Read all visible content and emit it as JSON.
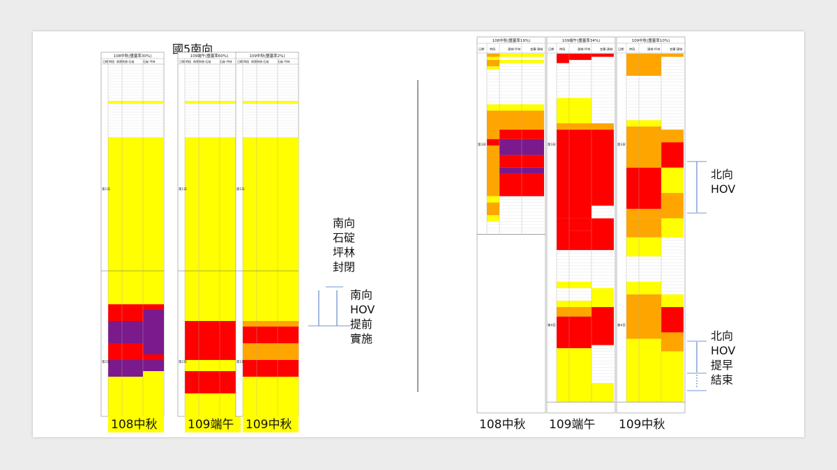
{
  "title": "國5南向",
  "left_panel": {
    "headers": [
      "108中秋(壅塞率30%)",
      "109端午(壅塞率60%)",
      "109中秋(壅塞率2%)"
    ],
    "subheaders": [
      [
        "日期",
        "時段",
        "南港系統-石碇",
        "石碇-坪林"
      ],
      [
        "日期",
        "時段",
        "南港系統-石碇",
        "石碇-坪林"
      ],
      [
        "日期",
        "時段",
        "南港系統-石碇",
        "石碇-坪林"
      ]
    ],
    "day_labels": [
      [
        "第1日",
        "第2日"
      ],
      [
        "第1日",
        "第2日"
      ],
      [
        "第1日",
        "第2日"
      ]
    ],
    "captions": [
      "108中秋",
      "109端午",
      "109中秋"
    ],
    "annotations": [
      "南向\n石碇\n坪林\n封閉",
      "南向\nHOV\n提前\n實施"
    ]
  },
  "right_panel": {
    "headers": [
      "108中秋(壅塞率19%)",
      "109端午(壅塞率34%)",
      "109中秋(壅塞率10%)"
    ],
    "subheaders": [
      [
        "日期",
        "時段",
        "頭城-坪林",
        "宜蘭-頭城"
      ],
      [
        "日期",
        "時段",
        "頭城-坪林",
        "宜蘭-頭城"
      ],
      [
        "日期",
        "時段",
        "頭城-坪林",
        "宜蘭-頭城"
      ]
    ],
    "day_labels": [
      [
        "第3日"
      ],
      [
        "第3日",
        "第4日"
      ],
      [
        "第3日",
        "第4日"
      ]
    ],
    "captions": [
      "108中秋",
      "109端午",
      "109中秋"
    ],
    "annotations": [
      "北向\nHOV",
      "北向\nHOV\n提早\n結束"
    ]
  },
  "chart_data": {
    "type": "heatmap",
    "legend": {
      "0": "white",
      "1": "yellow",
      "2": "orange",
      "3": "red",
      "4": "purple"
    },
    "colors": {
      "0": "#ffffff",
      "1": "#ffff00",
      "2": "#ffa500",
      "3": "#ff0000",
      "4": "#7a1a8c"
    },
    "grids": [
      {
        "name": "108中秋",
        "cols": [
          [
            [
              1,
              13,
              0
            ],
            [
              13,
              14,
              1
            ],
            [
              14,
              26,
              0
            ],
            [
              26,
              86,
              1
            ],
            [
              86,
              92,
              3
            ],
            [
              92,
              100,
              4
            ],
            [
              100,
              106,
              3
            ],
            [
              106,
              112,
              4
            ],
            [
              112,
              132,
              1
            ]
          ],
          [
            [
              1,
              13,
              0
            ],
            [
              13,
              14,
              1
            ],
            [
              14,
              26,
              0
            ],
            [
              26,
              86,
              1
            ],
            [
              86,
              92,
              3
            ],
            [
              92,
              100,
              4
            ],
            [
              100,
              106,
              3
            ],
            [
              106,
              112,
              4
            ],
            [
              112,
              132,
              1
            ]
          ],
          [
            [
              1,
              13,
              0
            ],
            [
              13,
              14,
              1
            ],
            [
              14,
              26,
              0
            ],
            [
              26,
              86,
              1
            ],
            [
              86,
              88,
              3
            ],
            [
              88,
              104,
              4
            ],
            [
              104,
              106,
              3
            ],
            [
              106,
              110,
              4
            ],
            [
              110,
              132,
              1
            ]
          ]
        ]
      },
      {
        "name": "109端午",
        "cols": [
          [
            [
              1,
              13,
              0
            ],
            [
              13,
              14,
              1
            ],
            [
              14,
              26,
              0
            ],
            [
              26,
              92,
              1
            ],
            [
              92,
              106,
              3
            ],
            [
              106,
              110,
              1
            ],
            [
              110,
              118,
              3
            ],
            [
              118,
              132,
              1
            ]
          ],
          [
            [
              1,
              13,
              0
            ],
            [
              13,
              14,
              1
            ],
            [
              14,
              26,
              0
            ],
            [
              26,
              92,
              1
            ],
            [
              92,
              106,
              3
            ],
            [
              106,
              110,
              1
            ],
            [
              110,
              118,
              3
            ],
            [
              118,
              132,
              1
            ]
          ],
          [
            [
              1,
              13,
              0
            ],
            [
              13,
              14,
              1
            ],
            [
              14,
              26,
              0
            ],
            [
              26,
              92,
              1
            ],
            [
              92,
              106,
              3
            ],
            [
              106,
              110,
              1
            ],
            [
              110,
              118,
              3
            ],
            [
              118,
              132,
              1
            ]
          ]
        ]
      },
      {
        "name": "109中秋",
        "cols": [
          [
            [
              1,
              13,
              0
            ],
            [
              13,
              14,
              1
            ],
            [
              14,
              26,
              0
            ],
            [
              26,
              92,
              1
            ],
            [
              92,
              94,
              2
            ],
            [
              94,
              100,
              3
            ],
            [
              100,
              106,
              2
            ],
            [
              106,
              112,
              3
            ],
            [
              112,
              132,
              1
            ]
          ],
          [
            [
              1,
              13,
              0
            ],
            [
              13,
              14,
              1
            ],
            [
              14,
              26,
              0
            ],
            [
              26,
              92,
              1
            ],
            [
              92,
              94,
              2
            ],
            [
              94,
              100,
              3
            ],
            [
              100,
              106,
              2
            ],
            [
              106,
              112,
              3
            ],
            [
              112,
              132,
              1
            ]
          ],
          [
            [
              1,
              13,
              0
            ],
            [
              13,
              14,
              1
            ],
            [
              14,
              26,
              0
            ],
            [
              26,
              92,
              1
            ],
            [
              92,
              94,
              2
            ],
            [
              94,
              100,
              3
            ],
            [
              100,
              106,
              2
            ],
            [
              106,
              112,
              3
            ],
            [
              112,
              132,
              1
            ]
          ]
        ]
      }
    ]
  }
}
